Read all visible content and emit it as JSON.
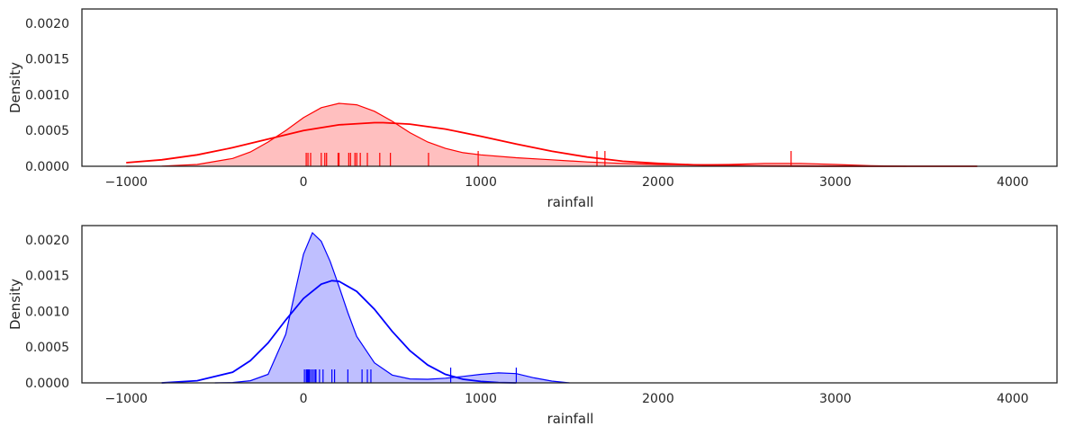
{
  "chart_data": [
    {
      "type": "area",
      "xlabel": "rainfall",
      "ylabel": "Density",
      "xlim": [
        -1250,
        4250
      ],
      "ylim": [
        0,
        0.0022
      ],
      "xticks": [
        -1000,
        0,
        1000,
        2000,
        3000,
        4000
      ],
      "xtick_labels": [
        "−1000",
        "0",
        "1000",
        "2000",
        "3000",
        "4000"
      ],
      "yticks": [
        0,
        0.0005,
        0.001,
        0.0015,
        0.002
      ],
      "ytick_labels": [
        "0.0000",
        "0.0005",
        "0.0010",
        "0.0015",
        "0.0020"
      ],
      "grid": false,
      "color": "#ff0000",
      "fill_color": "#ffbfbf",
      "kde_filled": {
        "x": [
          -1000,
          -800,
          -600,
          -400,
          -300,
          -200,
          -100,
          0,
          100,
          200,
          300,
          400,
          500,
          600,
          700,
          800,
          900,
          1000,
          1200,
          1400,
          1600,
          1800,
          2000,
          2200,
          2400,
          2600,
          2800,
          3000,
          3200,
          3400
        ],
        "y": [
          0,
          3e-06,
          2.5e-05,
          0.00011,
          0.0002,
          0.00034,
          0.0005,
          0.00068,
          0.00082,
          0.00088,
          0.00086,
          0.00077,
          0.00063,
          0.00047,
          0.00034,
          0.00025,
          0.00019,
          0.00016,
          0.00012,
          9e-05,
          6e-05,
          4e-05,
          2.5e-05,
          2e-05,
          2.5e-05,
          4e-05,
          4e-05,
          2.5e-05,
          8e-06,
          0
        ]
      },
      "normal_fit": {
        "x": [
          -1000,
          -800,
          -600,
          -400,
          -200,
          0,
          200,
          400,
          450,
          600,
          800,
          1000,
          1200,
          1400,
          1600,
          1800,
          2000,
          2200,
          2400,
          2600,
          2800,
          3000,
          3200,
          3400,
          3600,
          3800
        ],
        "y": [
          5e-05,
          9e-05,
          0.00016,
          0.00026,
          0.00038,
          0.0005,
          0.00058,
          0.00061,
          0.00061,
          0.00059,
          0.00052,
          0.00042,
          0.00031,
          0.00021,
          0.00013,
          7e-05,
          4e-05,
          2e-05,
          1e-05,
          4e-06,
          2e-06,
          0,
          0,
          0,
          0,
          0
        ]
      },
      "rug": [
        15,
        25,
        40,
        100,
        120,
        130,
        195,
        200,
        255,
        265,
        290,
        300,
        320,
        360,
        430,
        490,
        705,
        985,
        1655,
        1700,
        2750
      ],
      "rug_tall": [
        985,
        1655,
        1700,
        2750
      ]
    },
    {
      "type": "area",
      "xlabel": "rainfall",
      "ylabel": "Density",
      "xlim": [
        -1250,
        4250
      ],
      "ylim": [
        0,
        0.0022
      ],
      "xticks": [
        -1000,
        0,
        1000,
        2000,
        3000,
        4000
      ],
      "xtick_labels": [
        "−1000",
        "0",
        "1000",
        "2000",
        "3000",
        "4000"
      ],
      "yticks": [
        0,
        0.0005,
        0.001,
        0.0015,
        0.002
      ],
      "ytick_labels": [
        "0.0000",
        "0.0005",
        "0.0010",
        "0.0015",
        "0.0020"
      ],
      "grid": false,
      "color": "#0000ff",
      "fill_color": "#bfbfff",
      "kde_filled": {
        "x": [
          -500,
          -400,
          -300,
          -200,
          -100,
          -50,
          0,
          50,
          100,
          150,
          200,
          250,
          300,
          400,
          500,
          600,
          700,
          800,
          900,
          1000,
          1100,
          1200,
          1300,
          1400,
          1500
        ],
        "y": [
          0,
          5e-06,
          3e-05,
          0.00012,
          0.00068,
          0.00125,
          0.0018,
          0.0021,
          0.00198,
          0.0017,
          0.00135,
          0.00098,
          0.00065,
          0.00028,
          0.00011,
          5.5e-05,
          5e-05,
          6.5e-05,
          9e-05,
          0.00012,
          0.00014,
          0.00013,
          7e-05,
          2.5e-05,
          0
        ]
      },
      "normal_fit": {
        "x": [
          -800,
          -600,
          -400,
          -300,
          -200,
          -100,
          0,
          100,
          160,
          200,
          300,
          400,
          500,
          600,
          700,
          800,
          900,
          1000,
          1100,
          1200
        ],
        "y": [
          0,
          3e-05,
          0.00015,
          0.00031,
          0.00056,
          0.00088,
          0.00118,
          0.00138,
          0.00143,
          0.00142,
          0.00128,
          0.00103,
          0.00072,
          0.00045,
          0.00025,
          0.00012,
          5e-05,
          2e-05,
          5e-06,
          0
        ]
      },
      "rug": [
        5,
        15,
        20,
        25,
        30,
        35,
        45,
        55,
        65,
        70,
        90,
        110,
        160,
        175,
        250,
        330,
        360,
        380,
        830,
        1200
      ],
      "rug_tall": [
        830,
        1200
      ]
    }
  ]
}
